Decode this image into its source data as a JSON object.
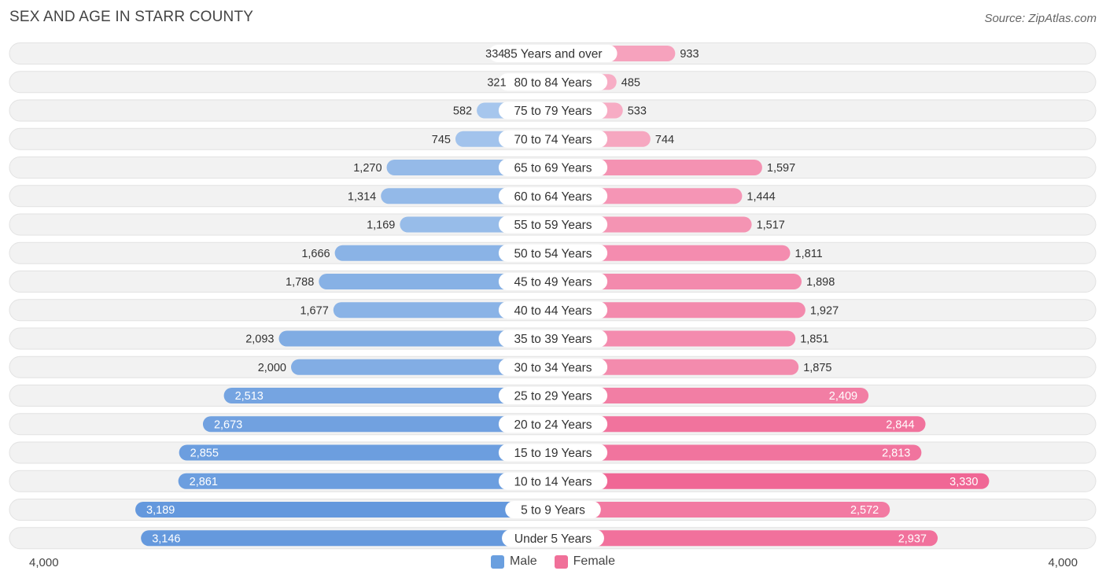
{
  "title": "SEX AND AGE IN STARR COUNTY",
  "source": "Source: ZipAtlas.com",
  "axis": {
    "left_label": "4,000",
    "right_label": "4,000"
  },
  "legend": [
    {
      "label": "Male",
      "color": "#6a9fdf"
    },
    {
      "label": "Female",
      "color": "#f07099"
    }
  ],
  "chart_data": {
    "type": "bar",
    "orientation": "horizontal-butterfly",
    "title": "SEX AND AGE IN STARR COUNTY",
    "categories": [
      "85 Years and over",
      "80 to 84 Years",
      "75 to 79 Years",
      "70 to 74 Years",
      "65 to 69 Years",
      "60 to 64 Years",
      "55 to 59 Years",
      "50 to 54 Years",
      "45 to 49 Years",
      "40 to 44 Years",
      "35 to 39 Years",
      "30 to 34 Years",
      "25 to 29 Years",
      "20 to 24 Years",
      "15 to 19 Years",
      "10 to 14 Years",
      "5 to 9 Years",
      "Under 5 Years"
    ],
    "series": [
      {
        "name": "Male",
        "values": [
          334,
          321,
          582,
          745,
          1270,
          1314,
          1169,
          1666,
          1788,
          1677,
          2093,
          2000,
          2513,
          2673,
          2855,
          2861,
          3189,
          3146
        ],
        "labels": [
          "334",
          "321",
          "582",
          "745",
          "1,270",
          "1,314",
          "1,169",
          "1,666",
          "1,788",
          "1,677",
          "2,093",
          "2,000",
          "2,513",
          "2,673",
          "2,855",
          "2,861",
          "3,189",
          "3,146"
        ]
      },
      {
        "name": "Female",
        "values": [
          933,
          485,
          533,
          744,
          1597,
          1444,
          1517,
          1811,
          1898,
          1927,
          1851,
          1875,
          2409,
          2844,
          2813,
          3330,
          2572,
          2937
        ],
        "labels": [
          "933",
          "485",
          "533",
          "744",
          "1,597",
          "1,444",
          "1,517",
          "1,811",
          "1,898",
          "1,927",
          "1,851",
          "1,875",
          "2,409",
          "2,844",
          "2,813",
          "3,330",
          "2,572",
          "2,937"
        ]
      }
    ],
    "xlim": [
      0,
      4000
    ],
    "legend_position": "bottom-center",
    "grid": false
  }
}
